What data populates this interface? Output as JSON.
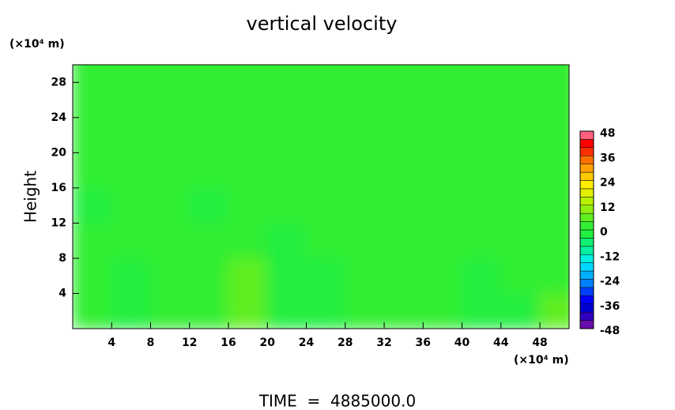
{
  "chart_data": {
    "type": "heatmap",
    "title": "vertical velocity",
    "y_label": "Height",
    "y_unit": "(×10⁴ m)",
    "x_unit": "(×10⁴ m)",
    "footer": "TIME  =  4885000.0",
    "x": [
      2,
      6,
      10,
      14,
      18,
      22,
      26,
      30,
      34,
      38,
      42,
      46,
      50
    ],
    "y": [
      2,
      6,
      10,
      14,
      18,
      22,
      26,
      30
    ],
    "z": [
      [
        1,
        -3,
        1,
        2,
        5,
        -2,
        -3,
        1,
        2,
        3,
        -3,
        -2,
        4
      ],
      [
        3,
        -2,
        1,
        2,
        5,
        -3,
        -2,
        1,
        1,
        3,
        -2,
        1,
        3
      ],
      [
        1,
        1,
        1,
        1,
        2,
        -1,
        1,
        1,
        1,
        1,
        1,
        1,
        1
      ],
      [
        -1,
        1,
        1,
        -1,
        1,
        1,
        1,
        1,
        1,
        1,
        1,
        1,
        1
      ],
      [
        1,
        1,
        1,
        1,
        1,
        1,
        1,
        1,
        1,
        1,
        1,
        1,
        1
      ],
      [
        1,
        1,
        1,
        1,
        1,
        1,
        1,
        1,
        1,
        1,
        1,
        1,
        1
      ],
      [
        1,
        1,
        1,
        1,
        1,
        1,
        1,
        1,
        1,
        1,
        1,
        1,
        1
      ],
      [
        1,
        1,
        1,
        1,
        1,
        1,
        1,
        1,
        1,
        1,
        1,
        1,
        1
      ]
    ],
    "xlim": [
      0,
      51
    ],
    "ylim": [
      0,
      30
    ],
    "xticks": [
      4,
      8,
      12,
      16,
      20,
      24,
      28,
      32,
      36,
      40,
      44,
      48
    ],
    "yticks": [
      4,
      8,
      12,
      16,
      20,
      24,
      28
    ],
    "colorbar": {
      "levels": [
        -48,
        -44,
        -40,
        -36,
        -32,
        -28,
        -24,
        -20,
        -16,
        -12,
        -8,
        -4,
        0,
        4,
        8,
        12,
        16,
        20,
        24,
        28,
        32,
        36,
        40,
        44,
        48
      ],
      "colors": [
        "#6a0dad",
        "#3000c0",
        "#0000d0",
        "#0000ff",
        "#0040ff",
        "#0080ff",
        "#00b0ff",
        "#00d8ff",
        "#00f0e0",
        "#00f0a0",
        "#10f070",
        "#20ee40",
        "#33ee33",
        "#60ee20",
        "#90ee10",
        "#b8f000",
        "#e0f000",
        "#ffee00",
        "#ffc800",
        "#ffa000",
        "#ff7000",
        "#ff3000",
        "#ff0000",
        "#ff6080"
      ],
      "ticks": [
        -48,
        -36,
        -24,
        -12,
        0,
        12,
        24,
        36,
        48
      ]
    }
  }
}
